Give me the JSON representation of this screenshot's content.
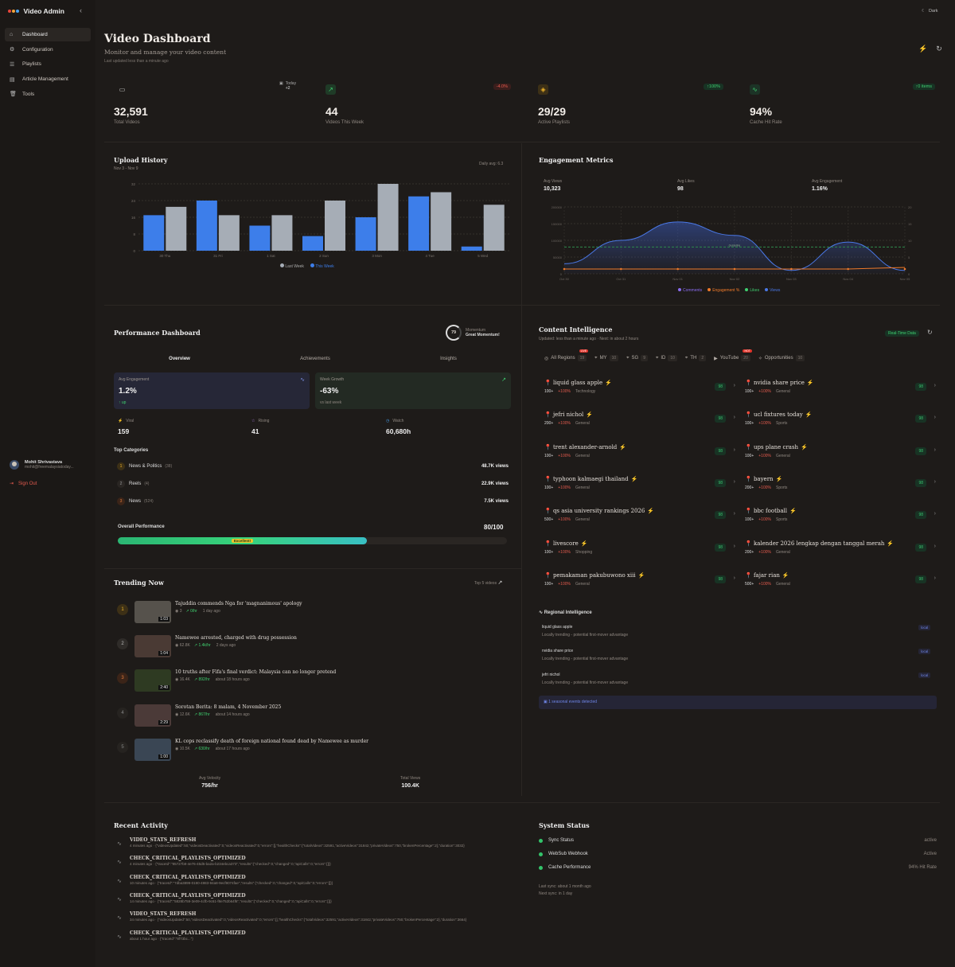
{
  "app": {
    "title": "Video Admin",
    "theme_label": "Dark"
  },
  "sidebar": {
    "items": [
      {
        "label": "Dashboard",
        "icon": "home-icon"
      },
      {
        "label": "Configuration",
        "icon": "gear-icon"
      },
      {
        "label": "Playlists",
        "icon": "list-icon"
      },
      {
        "label": "Article Management",
        "icon": "document-icon"
      },
      {
        "label": "Tools",
        "icon": "trash-icon"
      }
    ],
    "user": {
      "name": "Mohit Shrivastava",
      "email": "mohit@freemalaysiatoday..."
    },
    "signout": "Sign Out"
  },
  "page": {
    "title": "Video Dashboard",
    "subtitle": "Monitor and manage your video content",
    "updated": "Last updated less than a minute ago"
  },
  "stats": [
    {
      "value": "32,591",
      "label": "Total Videos",
      "badge": "+2",
      "badge_label": "Today"
    },
    {
      "value": "44",
      "label": "Videos This Week",
      "badge": "-4.0%"
    },
    {
      "value": "29/29",
      "label": "Active Playlists",
      "badge": "↑100%"
    },
    {
      "value": "94%",
      "label": "Cache Hit Rate",
      "badge": "↑0 items"
    }
  ],
  "upload": {
    "title": "Upload History",
    "range": "Nov 3 - Nov 9",
    "avg": "Daily avg: 6.3",
    "legend_last": "Last Week",
    "legend_this": "This Week"
  },
  "engagement": {
    "title": "Engagement Metrics",
    "avg_views_label": "Avg Views",
    "avg_views": "10,323",
    "avg_likes_label": "Avg Likes",
    "avg_likes": "98",
    "avg_eng_label": "Avg Engagement",
    "avg_eng": "1.16%",
    "legend": [
      "Comments",
      "Engagement %",
      "Likes",
      "Views"
    ],
    "guide_label": "Guideline"
  },
  "chart_data": [
    {
      "type": "bar",
      "title": "Upload History",
      "categories": [
        "30 Thu",
        "31 Fri",
        "1 Sat",
        "2 Sun",
        "3 Mon",
        "4 Tue",
        "5 Wed"
      ],
      "ylim": [
        0,
        32
      ],
      "yticks": [
        0,
        8,
        16,
        24,
        32
      ],
      "series": [
        {
          "name": "Last Week",
          "color": "#a6adb6",
          "values": [
            21,
            17,
            17,
            24,
            32,
            28,
            22
          ]
        },
        {
          "name": "This Week",
          "color": "#3d7eea",
          "values": [
            17,
            24,
            12,
            7,
            16,
            26,
            2
          ]
        }
      ]
    },
    {
      "type": "area",
      "title": "Engagement Metrics",
      "x": [
        "Oct 30",
        "Oct 31",
        "Nov 01",
        "Nov 02",
        "Nov 03",
        "Nov 04",
        "Nov 05"
      ],
      "yticks_left": [
        "200000",
        "150000",
        "100000",
        "50000",
        "0"
      ],
      "yticks_right": [
        "20",
        "15",
        "10",
        "5",
        "0"
      ],
      "series": [
        {
          "name": "Views",
          "values": [
            30000,
            100000,
            155000,
            115000,
            10000,
            95000,
            10000
          ]
        },
        {
          "name": "Engagement %",
          "values": [
            2,
            2,
            2,
            2,
            2,
            2,
            2
          ]
        }
      ]
    }
  ],
  "performance": {
    "title": "Performance Dashboard",
    "momentum_score": "79",
    "momentum_label": "Momentum",
    "momentum_value": "Great Momentum!",
    "tabs": [
      "Overview",
      "Achievements",
      "Insights"
    ],
    "avg_eng_label": "Avg Engagement",
    "avg_eng": "1.2%",
    "avg_eng_sub": "↑ up",
    "week_growth_label": "Week Growth",
    "week_growth": "-63%",
    "week_growth_sub": "vs last week",
    "viral_label": "Viral",
    "viral": "159",
    "rising_label": "Rising",
    "rising": "41",
    "watch_label": "Watch",
    "watch": "60,680h",
    "top_categories_label": "Top Categories",
    "categories": [
      {
        "rank": "1",
        "name": "News & Politics",
        "count": "(38)",
        "views": "48.7K views"
      },
      {
        "rank": "2",
        "name": "Reels",
        "count": "(4)",
        "views": "22.9K views"
      },
      {
        "rank": "3",
        "name": "News",
        "count": "(524)",
        "views": "7.5K views"
      }
    ],
    "overall_label": "Overall Performance",
    "overall_value": "80/100",
    "overall_fraction": 0.8,
    "overall_badge": "Excellent!"
  },
  "trending": {
    "title": "Trending Now",
    "top": "Top 5 videos",
    "avg_velocity_label": "Avg Velocity",
    "avg_velocity": "756/hr",
    "total_views_label": "Total Views",
    "total_views": "100.4K",
    "items": [
      {
        "rank": "1",
        "title": "Tajuddin commends Nga for 'magnanimous' apology",
        "views": "3",
        "rate": "0/hr",
        "time": "1 day ago",
        "dur": "1:03"
      },
      {
        "rank": "2",
        "title": "Namewee arrested, charged with drug possession",
        "views": "62.8K",
        "rate": "1.4k/hr",
        "time": "2 days ago",
        "dur": "1:04"
      },
      {
        "rank": "3",
        "title": "10 truths after Fifa's final verdict: Malaysia can no longer pretend",
        "views": "16.4K",
        "rate": "892/hr",
        "time": "about 18 hours ago",
        "dur": "2:40"
      },
      {
        "rank": "4",
        "title": "Sorotan Berita: 8 malam, 4 November 2025",
        "views": "12.6K",
        "rate": "867/hr",
        "time": "about 14 hours ago",
        "dur": "2:29"
      },
      {
        "rank": "5",
        "title": "KL cops reclassify death of foreign national found dead by Namewee as murder",
        "views": "10.5K",
        "rate": "630/hr",
        "time": "about 17 hours ago",
        "dur": "1:00"
      }
    ]
  },
  "content": {
    "title": "Content Intelligence",
    "updated": "Updated: less than a minute ago · Next: in about 2 hours",
    "realtime": "Real-Time Data",
    "regions": [
      {
        "label": "All Regions",
        "count": "19",
        "badge": "LIVE"
      },
      {
        "label": "MY",
        "count": "10"
      },
      {
        "label": "SG",
        "count": "9"
      },
      {
        "label": "ID",
        "count": "10"
      },
      {
        "label": "TH",
        "count": "2"
      },
      {
        "label": "YouTube",
        "count": "20",
        "badge": "HOT"
      },
      {
        "label": "Opportunities",
        "count": "10"
      }
    ],
    "keywords": [
      {
        "name": "liquid glass apple",
        "vol": "100+",
        "growth": "+100%",
        "cat": "Technology",
        "score": "98"
      },
      {
        "name": "nvidia share price",
        "vol": "100+",
        "growth": "+100%",
        "cat": "General",
        "score": "98"
      },
      {
        "name": "jefri nichol",
        "vol": "200+",
        "growth": "+100%",
        "cat": "General",
        "score": "98"
      },
      {
        "name": "ucl fixtures today",
        "vol": "100+",
        "growth": "+100%",
        "cat": "Sports",
        "score": "98"
      },
      {
        "name": "trent alexander-arnold",
        "vol": "100+",
        "growth": "+100%",
        "cat": "General",
        "score": "98"
      },
      {
        "name": "ups plane crash",
        "vol": "100+",
        "growth": "+100%",
        "cat": "General",
        "score": "98"
      },
      {
        "name": "typhoon kalmaegi thailand",
        "vol": "100+",
        "growth": "+100%",
        "cat": "General",
        "score": "98"
      },
      {
        "name": "bayern",
        "vol": "200+",
        "growth": "+100%",
        "cat": "Sports",
        "score": "98"
      },
      {
        "name": "qs asia university rankings 2026",
        "vol": "500+",
        "growth": "+100%",
        "cat": "General",
        "score": "98"
      },
      {
        "name": "bbc football",
        "vol": "100+",
        "growth": "+100%",
        "cat": "Sports",
        "score": "98"
      },
      {
        "name": "livescore",
        "vol": "100+",
        "growth": "+100%",
        "cat": "Shopping",
        "score": "98"
      },
      {
        "name": "kalender 2026 lengkap dengan tanggal merah",
        "vol": "200+",
        "growth": "+100%",
        "cat": "General",
        "score": "98"
      },
      {
        "name": "pemakaman pakubuwono xiii",
        "vol": "100+",
        "growth": "+100%",
        "cat": "General",
        "score": "98"
      },
      {
        "name": "fajar rian",
        "vol": "500+",
        "growth": "+100%",
        "cat": "General",
        "score": "98"
      }
    ],
    "regional_title": "Regional Intelligence",
    "regional": [
      {
        "name": "liquid glass apple",
        "desc": "Locally trending - potential first-mover advantage",
        "tag": "local"
      },
      {
        "name": "nvidia share price",
        "desc": "Locally trending - potential first-mover advantage",
        "tag": "local"
      },
      {
        "name": "jefri nichol",
        "desc": "Locally trending - potential first-mover advantage",
        "tag": "local"
      }
    ],
    "seasonal": "1 seasonal events detected"
  },
  "activity": {
    "title": "Recent Activity",
    "items": [
      {
        "h": "VIDEO_STATS_REFRESH",
        "d": "4 minutes ago · {\"videosUpdated\":50,\"videosDeactivated\":0,\"videosReactivated\":0,\"errors\":[],\"healthChecks\":{\"totalVideos\":32591,\"activeVideos\":31842,\"privateVideos\":750,\"brokenPercentage\":2},\"duration\":3032}"
      },
      {
        "h": "CHECK_CRITICAL_PLAYLISTS_OPTIMIZED",
        "d": "4 minutes ago · {\"traceId\":\"85727b8-4e76-45d5-ba2a-b234ebca373\",\"results\":{\"checked\":0,\"changed\":0,\"apiCalls\":0,\"errors\":[]}}"
      },
      {
        "h": "CHECK_CRITICAL_PLAYLISTS_OPTIMIZED",
        "d": "10 minutes ago · {\"traceId\":\"7dba3899-0190-4983-94a8-9ecf9074fae\",\"results\":{\"checked\":0,\"changed\":0,\"apiCalls\":0,\"errors\":[]}}"
      },
      {
        "h": "CHECK_CRITICAL_PLAYLISTS_OPTIMIZED",
        "d": "14 minutes ago · {\"traceId\":\"5828b759-3e09-4cfb-9c61-f8e752b64f6\",\"results\":{\"checked\":0,\"changed\":0,\"apiCalls\":0,\"errors\":[]}}"
      },
      {
        "h": "VIDEO_STATS_REFRESH",
        "d": "34 minutes ago · {\"videosUpdated\":50,\"videosDeactivated\":0,\"videosReactivated\":0,\"errors\":[],\"healthChecks\":{\"totalVideos\":32591,\"activeVideos\":31842,\"privateVideos\":750,\"brokenPercentage\":2},\"duration\":3664}"
      },
      {
        "h": "CHECK_CRITICAL_PLAYLISTS_OPTIMIZED",
        "d": "about 1 hour ago · {\"traceId\":\"8f73bc...\"}"
      }
    ]
  },
  "system": {
    "title": "System Status",
    "items": [
      {
        "label": "Sync Status",
        "value": "active"
      },
      {
        "label": "WebSub Webhook",
        "value": "Active"
      },
      {
        "label": "Cache Performance",
        "value": "94% Hit Rate"
      }
    ],
    "last_sync": "Last sync: about 1 month ago",
    "next_sync": "Next sync: in 1 day"
  }
}
